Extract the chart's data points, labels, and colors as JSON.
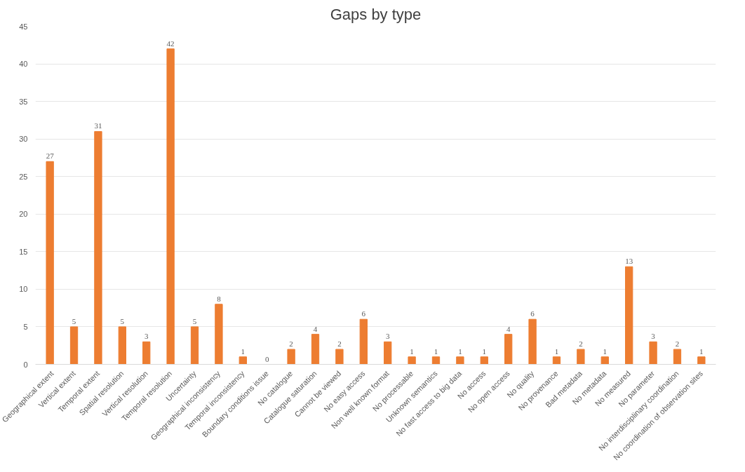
{
  "chart_data": {
    "type": "bar",
    "title": "Gaps by type",
    "categories": [
      "Geographical extent",
      "Vertical extent",
      "Temporal extent",
      "Spatial resolution",
      "Vertical resolution",
      "Temporal resolution",
      "Uncertainty",
      "Geographical inconsistency",
      "Temporal inconsistency",
      "Boundary conditions issue",
      "No catalogue",
      "Catalogue saturation",
      "Cannot be viewed",
      "No easy access",
      "Non well known format",
      "No processable",
      "Unknown semantics",
      "No fast access to big data",
      "No access",
      "No open access",
      "No quality",
      "No provenance",
      "Bad metadata",
      "No metadata",
      "No measured",
      "No parameter",
      "No interdisciplinary coordination",
      "No coordination of observation sites"
    ],
    "values": [
      27,
      5,
      31,
      5,
      3,
      42,
      5,
      8,
      1,
      0,
      2,
      4,
      2,
      6,
      3,
      1,
      1,
      1,
      1,
      4,
      6,
      1,
      2,
      1,
      13,
      3,
      2,
      1
    ],
    "color": "#ed7d31",
    "ylim": [
      0,
      45
    ],
    "yticks": [
      0,
      5,
      10,
      15,
      20,
      25,
      30,
      35,
      40,
      45
    ],
    "grid": "y",
    "data_labels": true
  }
}
